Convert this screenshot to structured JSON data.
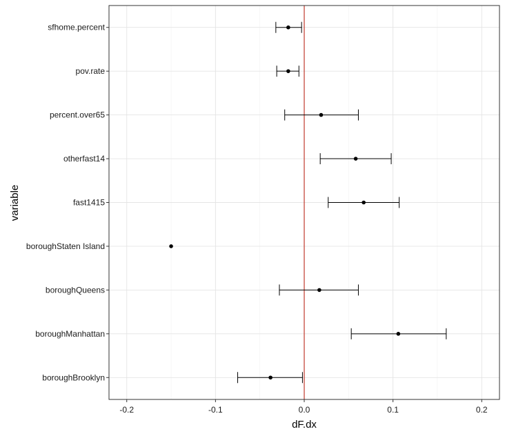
{
  "chart_data": {
    "type": "scatter",
    "title": "",
    "xlabel": "dF.dx",
    "ylabel": "variable",
    "xlim": [
      -0.22,
      0.22
    ],
    "x_ticks": [
      -0.2,
      -0.1,
      0.0,
      0.1,
      0.2
    ],
    "x_tick_labels": [
      "-0.2",
      "-0.1",
      "0.0",
      "0.1",
      "0.2"
    ],
    "grid": true,
    "reference_line": {
      "x": 0,
      "color": "#c0392b"
    },
    "point_color": "#000000",
    "categories": [
      "sfhome.percent",
      "pov.rate",
      "percent.over65",
      "otherfast14",
      "fast1415",
      "boroughStaten Island",
      "boroughQueens",
      "boroughManhattan",
      "boroughBrooklyn"
    ],
    "points": [
      {
        "variable": "sfhome.percent",
        "x": -0.018,
        "lower": -0.032,
        "upper": -0.003
      },
      {
        "variable": "pov.rate",
        "x": -0.018,
        "lower": -0.031,
        "upper": -0.006
      },
      {
        "variable": "percent.over65",
        "x": 0.019,
        "lower": -0.022,
        "upper": 0.061
      },
      {
        "variable": "otherfast14",
        "x": 0.058,
        "lower": 0.018,
        "upper": 0.098
      },
      {
        "variable": "fast1415",
        "x": 0.067,
        "lower": 0.027,
        "upper": 0.107
      },
      {
        "variable": "boroughStaten Island",
        "x": -0.15,
        "lower": null,
        "upper": null
      },
      {
        "variable": "boroughQueens",
        "x": 0.017,
        "lower": -0.028,
        "upper": 0.061
      },
      {
        "variable": "boroughManhattan",
        "x": 0.106,
        "lower": 0.053,
        "upper": 0.16
      },
      {
        "variable": "boroughBrooklyn",
        "x": -0.038,
        "lower": -0.075,
        "upper": -0.002
      }
    ]
  }
}
